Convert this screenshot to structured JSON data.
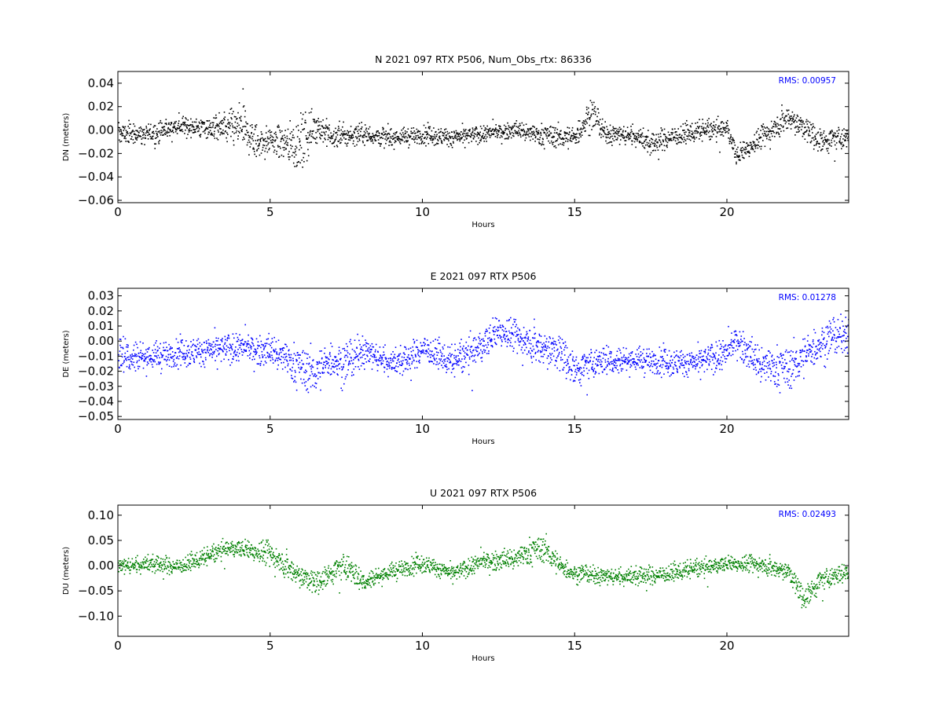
{
  "chart_data": [
    {
      "type": "scatter",
      "title": "N 2021 097 RTX  P506, Num_Obs_rtx: 86336",
      "xlabel": "Hours",
      "ylabel": "DN (meters)",
      "xlim": [
        0,
        24
      ],
      "ylim": [
        -0.062,
        0.05
      ],
      "x_ticks": [
        0,
        5,
        10,
        15,
        20
      ],
      "x_tick_labels": [
        "0",
        "5",
        "10",
        "15",
        "20"
      ],
      "y_ticks": [
        -0.06,
        -0.04,
        -0.02,
        0.0,
        0.02,
        0.04
      ],
      "y_tick_labels": [
        "−0.06",
        "−0.04",
        "−0.02",
        "0.00",
        "0.02",
        "0.04"
      ],
      "grid": false,
      "annotation": "RMS:  0.00957",
      "annotation_color": "#0000ff",
      "series_color": "#000000",
      "series": [
        {
          "x": [
            0,
            1,
            2,
            3,
            4,
            4.5,
            5,
            6,
            6.5,
            7,
            8,
            9,
            10,
            11,
            12,
            13,
            14,
            15,
            15.5,
            16,
            17,
            17.5,
            18,
            19,
            20,
            20.3,
            21,
            22,
            23,
            24
          ],
          "y": [
            -0.002,
            -0.003,
            0.004,
            0.002,
            0.003,
            -0.01,
            -0.008,
            -0.012,
            0.005,
            -0.006,
            -0.003,
            -0.006,
            -0.004,
            -0.006,
            -0.003,
            0.001,
            -0.004,
            -0.006,
            0.015,
            -0.003,
            -0.004,
            -0.012,
            -0.006,
            -0.001,
            0.002,
            -0.022,
            -0.008,
            0.012,
            -0.008,
            -0.006
          ],
          "spread": [
            0.008,
            0.008,
            0.007,
            0.008,
            0.016,
            0.014,
            0.009,
            0.022,
            0.012,
            0.009,
            0.008,
            0.007,
            0.007,
            0.007,
            0.006,
            0.006,
            0.008,
            0.008,
            0.012,
            0.007,
            0.008,
            0.008,
            0.008,
            0.007,
            0.007,
            0.008,
            0.008,
            0.01,
            0.01,
            0.008
          ]
        }
      ]
    },
    {
      "type": "scatter",
      "title": "E 2021 097 RTX  P506",
      "xlabel": "Hours",
      "ylabel": "DE (meters)",
      "xlim": [
        0,
        24
      ],
      "ylim": [
        -0.052,
        0.035
      ],
      "x_ticks": [
        0,
        5,
        10,
        15,
        20
      ],
      "x_tick_labels": [
        "0",
        "5",
        "10",
        "15",
        "20"
      ],
      "y_ticks": [
        -0.05,
        -0.04,
        -0.03,
        -0.02,
        -0.01,
        0.0,
        0.01,
        0.02,
        0.03
      ],
      "y_tick_labels": [
        "−0.05",
        "−0.04",
        "−0.03",
        "−0.02",
        "−0.01",
        "0.00",
        "0.01",
        "0.02",
        "0.03"
      ],
      "grid": false,
      "annotation": "RMS:  0.01278",
      "annotation_color": "#0000ff",
      "series_color": "#0000ff",
      "series": [
        {
          "x": [
            0,
            1,
            2,
            3,
            4,
            5,
            5.5,
            6,
            6.5,
            7,
            7.5,
            8,
            9,
            9.5,
            10,
            11,
            12,
            12.5,
            13,
            14,
            14.5,
            15,
            16,
            17,
            18,
            19,
            20,
            20.3,
            21,
            22,
            23,
            24
          ],
          "y": [
            -0.008,
            -0.01,
            -0.008,
            -0.006,
            -0.004,
            -0.006,
            -0.01,
            -0.018,
            -0.02,
            -0.012,
            -0.016,
            -0.006,
            -0.014,
            -0.012,
            -0.004,
            -0.014,
            -0.002,
            0.008,
            0.004,
            -0.004,
            -0.008,
            -0.018,
            -0.012,
            -0.012,
            -0.014,
            -0.014,
            -0.008,
            0.002,
            -0.014,
            -0.018,
            -0.002,
            0.006
          ],
          "spread": [
            0.01,
            0.009,
            0.008,
            0.009,
            0.008,
            0.009,
            0.01,
            0.012,
            0.012,
            0.01,
            0.012,
            0.009,
            0.008,
            0.008,
            0.008,
            0.008,
            0.01,
            0.01,
            0.009,
            0.012,
            0.012,
            0.01,
            0.008,
            0.008,
            0.008,
            0.008,
            0.009,
            0.008,
            0.011,
            0.012,
            0.011,
            0.01
          ]
        }
      ]
    },
    {
      "type": "scatter",
      "title": "U 2021 097 RTX  P506",
      "xlabel": "Hours",
      "ylabel": "DU (meters)",
      "xlim": [
        0,
        24
      ],
      "ylim": [
        -0.14,
        0.12
      ],
      "x_ticks": [
        0,
        5,
        10,
        15,
        20
      ],
      "x_tick_labels": [
        "0",
        "5",
        "10",
        "15",
        "20"
      ],
      "y_ticks": [
        -0.1,
        -0.05,
        0.0,
        0.05,
        0.1
      ],
      "y_tick_labels": [
        "−0.10",
        "−0.05",
        "0.00",
        "0.05",
        "0.10"
      ],
      "grid": false,
      "annotation": "RMS:  0.02493",
      "annotation_color": "#0000ff",
      "series_color": "#008000",
      "series": [
        {
          "x": [
            0,
            1,
            2,
            3,
            3.5,
            4,
            5,
            6,
            6.5,
            7,
            7.5,
            8,
            9,
            10,
            11,
            12,
            13,
            13.5,
            14,
            14.5,
            15,
            16,
            17,
            18,
            19,
            20,
            21,
            22,
            22.5,
            23,
            24
          ],
          "y": [
            0.0,
            0.005,
            0.0,
            0.02,
            0.035,
            0.035,
            0.025,
            -0.02,
            -0.035,
            -0.01,
            0.0,
            -0.03,
            -0.01,
            0.005,
            -0.015,
            0.01,
            0.015,
            0.03,
            0.035,
            0.0,
            -0.015,
            -0.02,
            -0.02,
            -0.015,
            -0.005,
            0.005,
            0.005,
            -0.01,
            -0.065,
            -0.03,
            -0.01
          ],
          "spread": [
            0.015,
            0.015,
            0.014,
            0.014,
            0.014,
            0.016,
            0.022,
            0.022,
            0.022,
            0.02,
            0.025,
            0.016,
            0.016,
            0.016,
            0.014,
            0.016,
            0.018,
            0.022,
            0.022,
            0.018,
            0.014,
            0.015,
            0.016,
            0.015,
            0.014,
            0.014,
            0.015,
            0.018,
            0.022,
            0.02,
            0.014
          ]
        }
      ]
    }
  ]
}
